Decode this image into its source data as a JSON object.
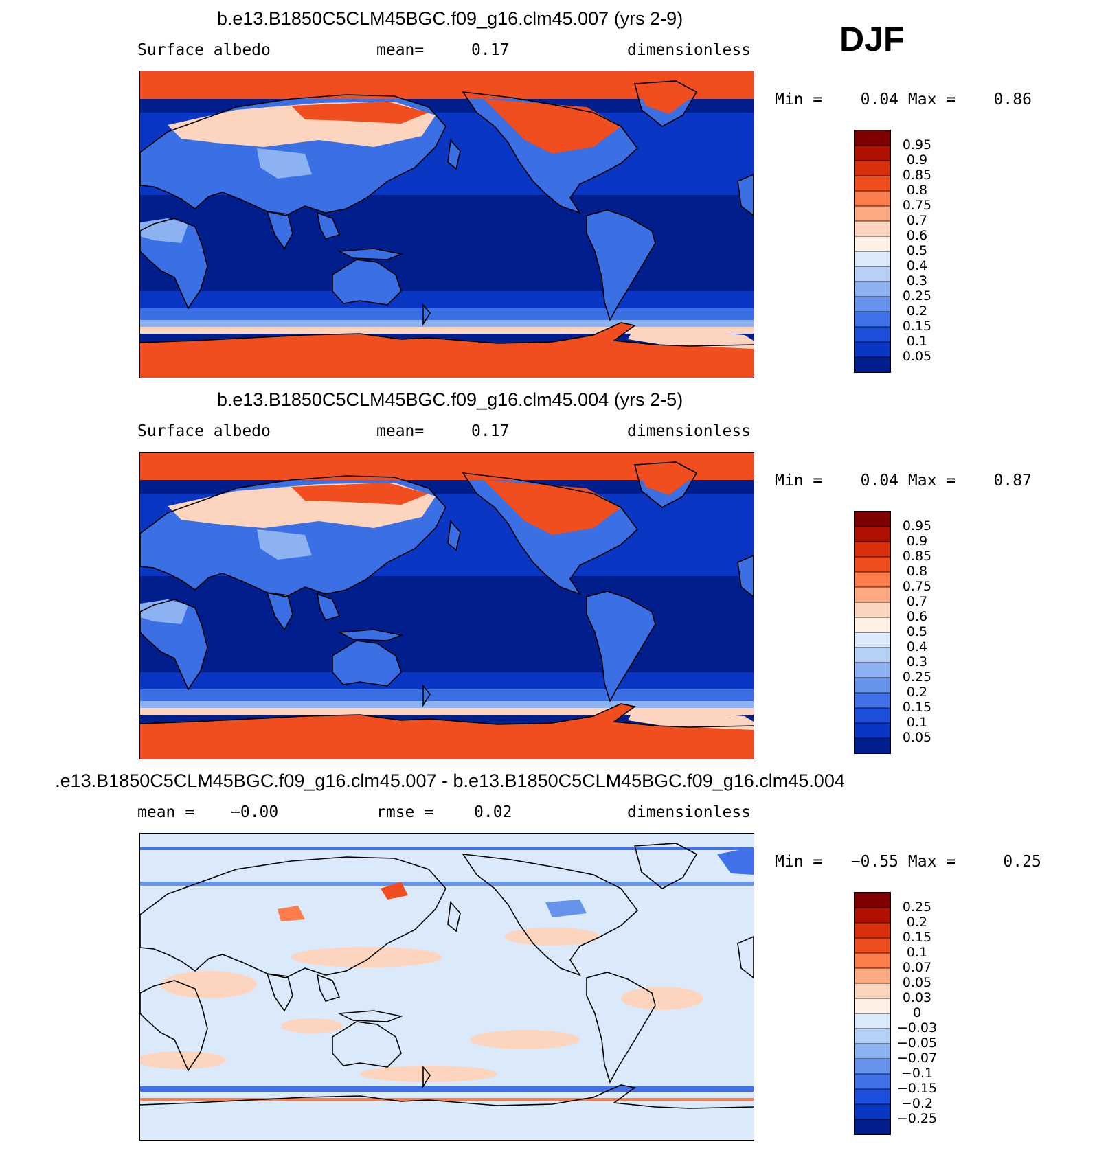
{
  "season": "DJF",
  "panels": [
    {
      "title": "b.e13.B1850C5CLM45BGC.f09_g16.clm45.007 (yrs 2-9)",
      "variable": "Surface albedo",
      "mean_label": "mean=",
      "mean_value": "0.17",
      "units": "dimensionless",
      "min_label": "Min =",
      "min_value": "0.04",
      "max_label": "Max =",
      "max_value": "0.86",
      "colorbar_labels": [
        "0.95",
        "0.9",
        "0.85",
        "0.8",
        "0.75",
        "0.7",
        "0.6",
        "0.5",
        "0.4",
        "0.3",
        "0.25",
        "0.2",
        "0.15",
        "0.1",
        "0.05"
      ]
    },
    {
      "title": "b.e13.B1850C5CLM45BGC.f09_g16.clm45.004 (yrs 2-5)",
      "variable": "Surface albedo",
      "mean_label": "mean=",
      "mean_value": "0.17",
      "units": "dimensionless",
      "min_label": "Min =",
      "min_value": "0.04",
      "max_label": "Max =",
      "max_value": "0.87",
      "colorbar_labels": [
        "0.95",
        "0.9",
        "0.85",
        "0.8",
        "0.75",
        "0.7",
        "0.6",
        "0.5",
        "0.4",
        "0.3",
        "0.25",
        "0.2",
        "0.15",
        "0.1",
        "0.05"
      ]
    },
    {
      "title": ".e13.B1850C5CLM45BGC.f09_g16.clm45.007 - b.e13.B1850C5CLM45BGC.f09_g16.clm45.004",
      "mean_label": "mean =",
      "mean_value": "−0.00",
      "rmse_label": "rmse =",
      "rmse_value": "0.02",
      "units": "dimensionless",
      "min_label": "Min =",
      "min_value": "−0.55",
      "max_label": "Max =",
      "max_value": "0.25",
      "colorbar_labels": [
        "0.25",
        "0.2",
        "0.15",
        "0.1",
        "0.07",
        "0.05",
        "0.03",
        "0",
        "−0.03",
        "−0.05",
        "−0.07",
        "−0.1",
        "−0.15",
        "−0.2",
        "−0.25"
      ]
    }
  ],
  "colors": {
    "scale": [
      "#7f0000",
      "#b01000",
      "#d8300a",
      "#f04e1e",
      "#fc7c4c",
      "#fda982",
      "#fdd5bf",
      "#fff1e6",
      "#dbeafa",
      "#b6d0f7",
      "#8db2f2",
      "#6694ed",
      "#4071e8",
      "#1c50dc",
      "#0a36c4",
      "#001e8c"
    ],
    "ocean_deep": "#001e8c",
    "ocean_mid": "#0a36c4",
    "land_low": "#3b6fe4",
    "land_mid": "#8db2f2",
    "snow": "#f04e1e",
    "snow_light": "#fdd5bf",
    "diff_bg": "#dbeafa",
    "diff_pos": "#fdd5bf"
  }
}
